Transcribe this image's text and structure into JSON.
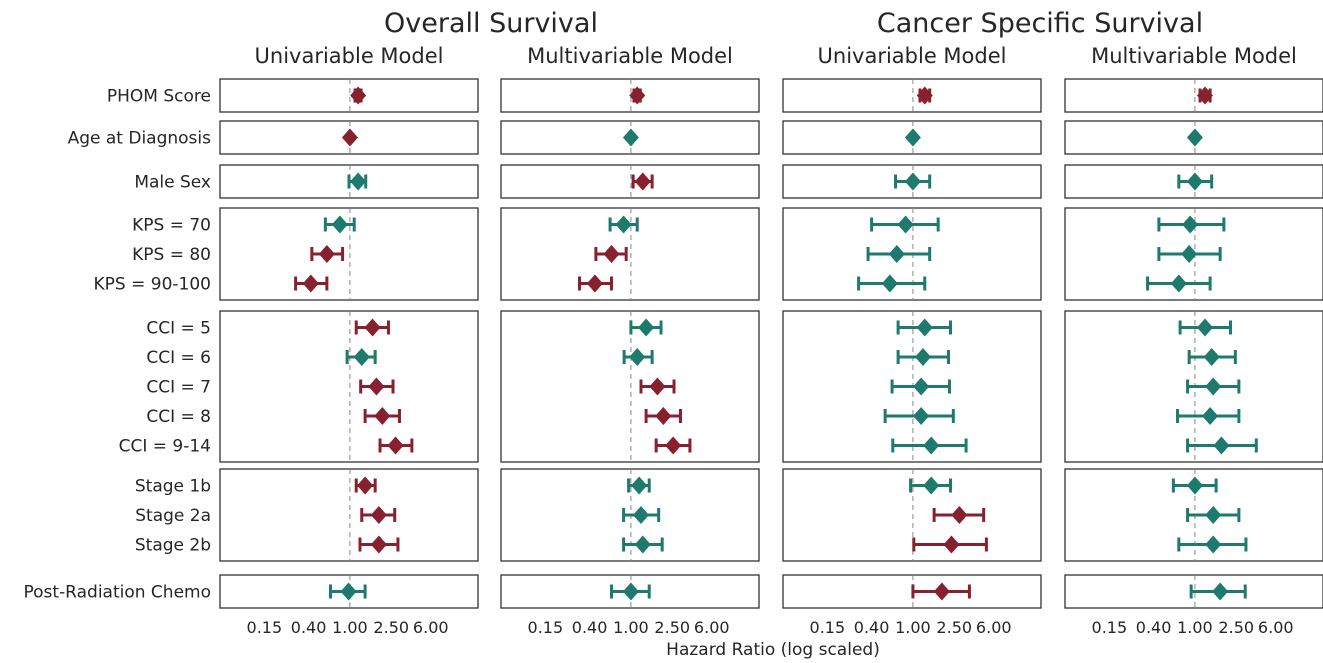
{
  "colors": {
    "significant": "#87202f",
    "nonsignificant": "#1e7a6d",
    "frame": "#333333",
    "reference": "#888888",
    "text": "#262626"
  },
  "suptitles": [
    "Overall Survival",
    "Cancer Specific Survival"
  ],
  "xlabel": "Hazard Ratio (log scaled)",
  "row_groups": [
    [
      "PHOM Score"
    ],
    [
      "Age at Diagnosis"
    ],
    [
      "Male Sex"
    ],
    [
      "KPS = 70",
      "KPS = 80",
      "KPS = 90-100"
    ],
    [
      "CCI = 5",
      "CCI = 6",
      "CCI = 7",
      "CCI = 8",
      "CCI = 9-14"
    ],
    [
      "Stage 1b",
      "Stage 2a",
      "Stage 2b"
    ],
    [
      "Post-Radiation Chemo"
    ]
  ],
  "chart_data": {
    "type": "forest",
    "x_scale": "log",
    "xlim": [
      0.08,
      12
    ],
    "x_ticks": [
      0.15,
      0.4,
      1.0,
      2.5,
      6.0
    ],
    "x_tick_labels": [
      "0.15",
      "0.40",
      "1.00",
      "2.50",
      "6.00"
    ],
    "reference_line": 1.0,
    "panels": [
      {
        "group": "Overall Survival",
        "title": "Univariable Model",
        "estimates": [
          {
            "label": "PHOM Score",
            "hr": 1.2,
            "lo": 1.12,
            "hi": 1.28,
            "significant": true
          },
          {
            "label": "Age at Diagnosis",
            "hr": 1.0,
            "lo": 0.99,
            "hi": 1.01,
            "significant": true
          },
          {
            "label": "Male Sex",
            "hr": 1.2,
            "lo": 0.98,
            "hi": 1.42,
            "significant": false
          },
          {
            "label": "KPS = 70",
            "hr": 0.8,
            "lo": 0.58,
            "hi": 1.1,
            "significant": false
          },
          {
            "label": "KPS = 80",
            "hr": 0.6,
            "lo": 0.43,
            "hi": 0.85,
            "significant": true
          },
          {
            "label": "KPS = 90-100",
            "hr": 0.42,
            "lo": 0.3,
            "hi": 0.6,
            "significant": true
          },
          {
            "label": "CCI = 5",
            "hr": 1.65,
            "lo": 1.15,
            "hi": 2.35,
            "significant": true
          },
          {
            "label": "CCI = 6",
            "hr": 1.3,
            "lo": 0.94,
            "hi": 1.75,
            "significant": false
          },
          {
            "label": "CCI = 7",
            "hr": 1.8,
            "lo": 1.27,
            "hi": 2.6,
            "significant": true
          },
          {
            "label": "CCI = 8",
            "hr": 2.05,
            "lo": 1.4,
            "hi": 3.0,
            "significant": true
          },
          {
            "label": "CCI = 9-14",
            "hr": 2.75,
            "lo": 1.95,
            "hi": 3.95,
            "significant": true
          },
          {
            "label": "Stage 1b",
            "hr": 1.4,
            "lo": 1.15,
            "hi": 1.75,
            "significant": true
          },
          {
            "label": "Stage 2a",
            "hr": 1.9,
            "lo": 1.3,
            "hi": 2.7,
            "significant": true
          },
          {
            "label": "Stage 2b",
            "hr": 1.9,
            "lo": 1.25,
            "hi": 2.9,
            "significant": true
          },
          {
            "label": "Post-Radiation Chemo",
            "hr": 0.97,
            "lo": 0.65,
            "hi": 1.4,
            "significant": false
          }
        ]
      },
      {
        "group": "Overall Survival",
        "title": "Multivariable Model",
        "estimates": [
          {
            "label": "PHOM Score",
            "hr": 1.15,
            "lo": 1.07,
            "hi": 1.23,
            "significant": true
          },
          {
            "label": "Age at Diagnosis",
            "hr": 1.0,
            "lo": 0.99,
            "hi": 1.01,
            "significant": false
          },
          {
            "label": "Male Sex",
            "hr": 1.3,
            "lo": 1.05,
            "hi": 1.6,
            "significant": true
          },
          {
            "label": "KPS = 70",
            "hr": 0.85,
            "lo": 0.63,
            "hi": 1.15,
            "significant": false
          },
          {
            "label": "KPS = 80",
            "hr": 0.65,
            "lo": 0.46,
            "hi": 0.9,
            "significant": true
          },
          {
            "label": "KPS = 90-100",
            "hr": 0.45,
            "lo": 0.32,
            "hi": 0.65,
            "significant": true
          },
          {
            "label": "CCI = 5",
            "hr": 1.4,
            "lo": 1.0,
            "hi": 1.95,
            "significant": false
          },
          {
            "label": "CCI = 6",
            "hr": 1.15,
            "lo": 0.86,
            "hi": 1.6,
            "significant": false
          },
          {
            "label": "CCI = 7",
            "hr": 1.8,
            "lo": 1.25,
            "hi": 2.6,
            "significant": true
          },
          {
            "label": "CCI = 8",
            "hr": 2.05,
            "lo": 1.4,
            "hi": 3.0,
            "significant": true
          },
          {
            "label": "CCI = 9-14",
            "hr": 2.55,
            "lo": 1.75,
            "hi": 3.7,
            "significant": true
          },
          {
            "label": "Stage 1b",
            "hr": 1.2,
            "lo": 0.95,
            "hi": 1.5,
            "significant": false
          },
          {
            "label": "Stage 2a",
            "hr": 1.25,
            "lo": 0.85,
            "hi": 1.85,
            "significant": false
          },
          {
            "label": "Stage 2b",
            "hr": 1.3,
            "lo": 0.85,
            "hi": 2.0,
            "significant": false
          },
          {
            "label": "Post-Radiation Chemo",
            "hr": 1.0,
            "lo": 0.65,
            "hi": 1.5,
            "significant": false
          }
        ]
      },
      {
        "group": "Cancer Specific Survival",
        "title": "Univariable Model",
        "estimates": [
          {
            "label": "PHOM Score",
            "hr": 1.3,
            "lo": 1.17,
            "hi": 1.45,
            "significant": true
          },
          {
            "label": "Age at Diagnosis",
            "hr": 1.0,
            "lo": 0.99,
            "hi": 1.01,
            "significant": false
          },
          {
            "label": "Male Sex",
            "hr": 1.0,
            "lo": 0.68,
            "hi": 1.45,
            "significant": false
          },
          {
            "label": "KPS = 70",
            "hr": 0.85,
            "lo": 0.4,
            "hi": 1.75,
            "significant": false
          },
          {
            "label": "KPS = 80",
            "hr": 0.7,
            "lo": 0.37,
            "hi": 1.45,
            "significant": false
          },
          {
            "label": "KPS = 90-100",
            "hr": 0.6,
            "lo": 0.3,
            "hi": 1.3,
            "significant": false
          },
          {
            "label": "CCI = 5",
            "hr": 1.3,
            "lo": 0.72,
            "hi": 2.3,
            "significant": false
          },
          {
            "label": "CCI = 6",
            "hr": 1.25,
            "lo": 0.72,
            "hi": 2.2,
            "significant": false
          },
          {
            "label": "CCI = 7",
            "hr": 1.2,
            "lo": 0.63,
            "hi": 2.25,
            "significant": false
          },
          {
            "label": "CCI = 8",
            "hr": 1.2,
            "lo": 0.54,
            "hi": 2.45,
            "significant": false
          },
          {
            "label": "CCI = 9-14",
            "hr": 1.5,
            "lo": 0.64,
            "hi": 3.25,
            "significant": false
          },
          {
            "label": "Stage 1b",
            "hr": 1.5,
            "lo": 0.95,
            "hi": 2.3,
            "significant": false
          },
          {
            "label": "Stage 2a",
            "hr": 2.8,
            "lo": 1.6,
            "hi": 4.8,
            "significant": true
          },
          {
            "label": "Stage 2b",
            "hr": 2.35,
            "lo": 1.02,
            "hi": 5.1,
            "significant": true
          },
          {
            "label": "Post-Radiation Chemo",
            "hr": 1.9,
            "lo": 1.0,
            "hi": 3.5,
            "significant": true
          }
        ]
      },
      {
        "group": "Cancer Specific Survival",
        "title": "Multivariable Model",
        "estimates": [
          {
            "label": "PHOM Score",
            "hr": 1.25,
            "lo": 1.12,
            "hi": 1.4,
            "significant": true
          },
          {
            "label": "Age at Diagnosis",
            "hr": 1.0,
            "lo": 0.99,
            "hi": 1.01,
            "significant": false
          },
          {
            "label": "Male Sex",
            "hr": 1.0,
            "lo": 0.7,
            "hi": 1.45,
            "significant": false
          },
          {
            "label": "KPS = 70",
            "hr": 0.9,
            "lo": 0.45,
            "hi": 1.9,
            "significant": false
          },
          {
            "label": "KPS = 80",
            "hr": 0.88,
            "lo": 0.45,
            "hi": 1.75,
            "significant": false
          },
          {
            "label": "KPS = 90-100",
            "hr": 0.7,
            "lo": 0.35,
            "hi": 1.4,
            "significant": false
          },
          {
            "label": "CCI = 5",
            "hr": 1.25,
            "lo": 0.72,
            "hi": 2.2,
            "significant": false
          },
          {
            "label": "CCI = 6",
            "hr": 1.45,
            "lo": 0.88,
            "hi": 2.45,
            "significant": false
          },
          {
            "label": "CCI = 7",
            "hr": 1.5,
            "lo": 0.85,
            "hi": 2.65,
            "significant": false
          },
          {
            "label": "CCI = 8",
            "hr": 1.4,
            "lo": 0.68,
            "hi": 2.65,
            "significant": false
          },
          {
            "label": "CCI = 9-14",
            "hr": 1.8,
            "lo": 0.85,
            "hi": 3.9,
            "significant": false
          },
          {
            "label": "Stage 1b",
            "hr": 1.0,
            "lo": 0.62,
            "hi": 1.6,
            "significant": false
          },
          {
            "label": "Stage 2a",
            "hr": 1.5,
            "lo": 0.85,
            "hi": 2.65,
            "significant": false
          },
          {
            "label": "Stage 2b",
            "hr": 1.5,
            "lo": 0.7,
            "hi": 3.1,
            "significant": false
          },
          {
            "label": "Post-Radiation Chemo",
            "hr": 1.75,
            "lo": 0.92,
            "hi": 3.05,
            "significant": false
          }
        ]
      }
    ]
  }
}
